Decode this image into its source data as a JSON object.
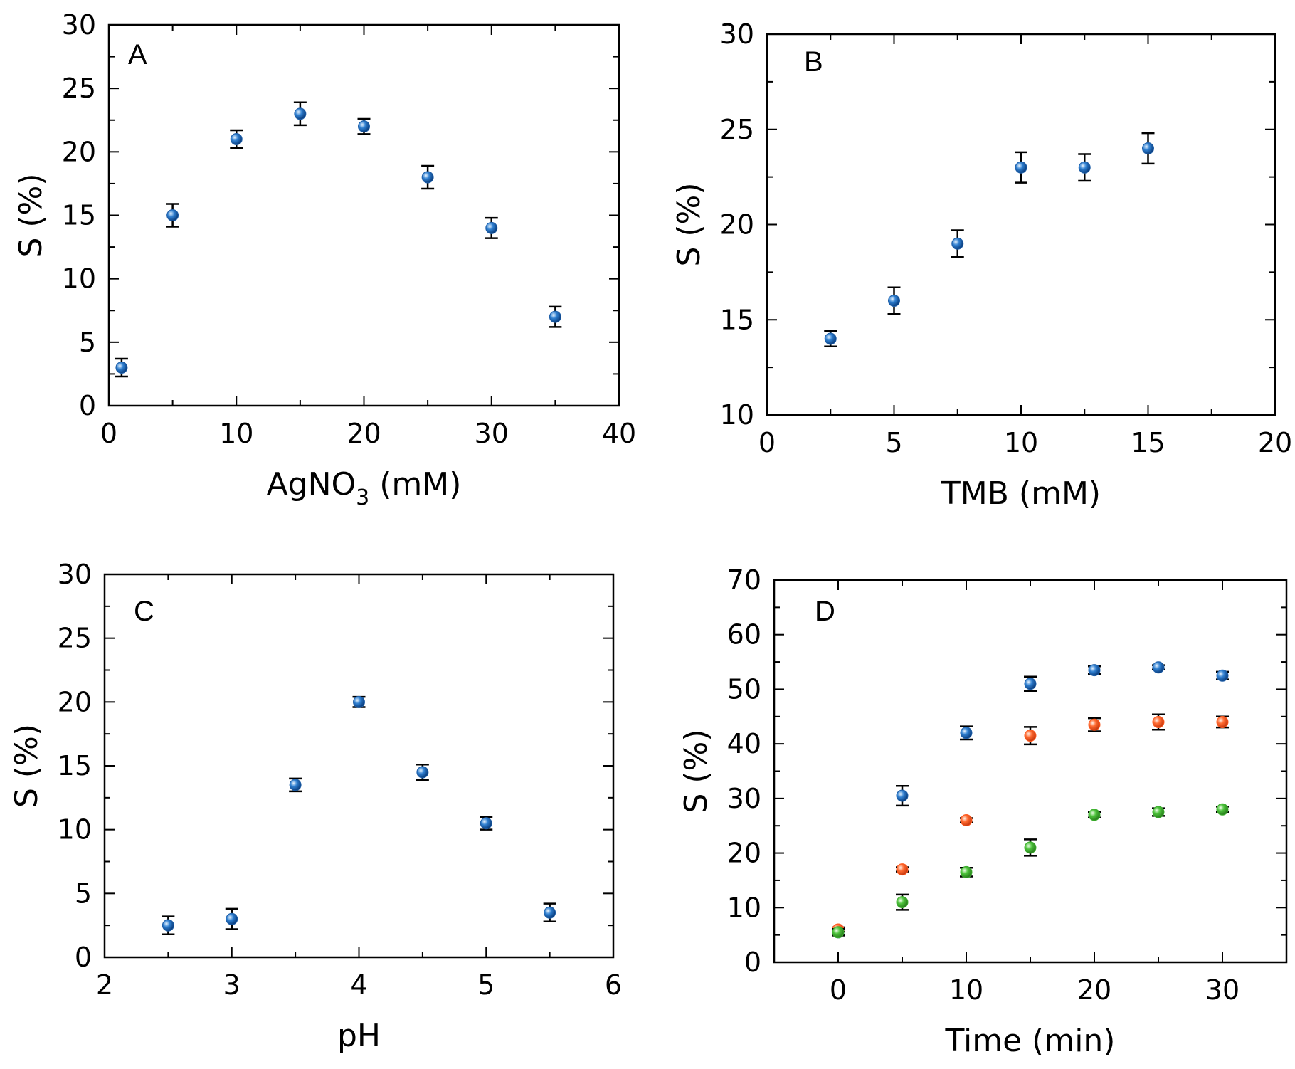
{
  "colors": {
    "panel_label": "#ff0000",
    "axis": "#000000",
    "blue": "#1f5fa8",
    "orange": "#ff5a1f",
    "green": "#3cae2e"
  },
  "chart_data": [
    {
      "type": "scatter",
      "panel_label": "A",
      "xlabel_main": "AgNO",
      "xlabel_sub": "3",
      "xlabel_tail": " (mM)",
      "ylabel": "S (%)",
      "xlim": [
        0,
        40
      ],
      "ylim": [
        0,
        30
      ],
      "xticks": [
        0,
        10,
        20,
        30,
        40
      ],
      "yticks": [
        0,
        5,
        10,
        15,
        20,
        25,
        30
      ],
      "xminor": 5,
      "yminor": 2.5,
      "series": [
        {
          "name": "S",
          "color": "blue",
          "x": [
            1,
            5,
            10,
            15,
            20,
            25,
            30,
            35
          ],
          "y": [
            3,
            15,
            21,
            23,
            22,
            18,
            14,
            7
          ],
          "err": [
            0.7,
            0.9,
            0.7,
            0.9,
            0.6,
            0.9,
            0.8,
            0.8
          ]
        }
      ]
    },
    {
      "type": "scatter",
      "panel_label": "B",
      "xlabel": "TMB (mM)",
      "ylabel": "S (%)",
      "xlim": [
        0,
        20
      ],
      "ylim": [
        10,
        30
      ],
      "xticks": [
        0,
        5,
        10,
        15,
        20
      ],
      "yticks": [
        10,
        15,
        20,
        25,
        30
      ],
      "xminor": 2.5,
      "yminor": 2.5,
      "series": [
        {
          "name": "S",
          "color": "blue",
          "x": [
            2.5,
            5,
            7.5,
            10,
            12.5,
            15
          ],
          "y": [
            14,
            16,
            19,
            23,
            23,
            24
          ],
          "err": [
            0.4,
            0.7,
            0.7,
            0.8,
            0.7,
            0.8
          ]
        }
      ]
    },
    {
      "type": "scatter",
      "panel_label": "C",
      "xlabel": "pH",
      "ylabel": "S (%)",
      "xlim": [
        2,
        6
      ],
      "ylim": [
        0,
        30
      ],
      "xticks": [
        2,
        3,
        4,
        5,
        6
      ],
      "yticks": [
        0,
        5,
        10,
        15,
        20,
        25,
        30
      ],
      "xminor": 0.5,
      "yminor": 2.5,
      "series": [
        {
          "name": "S",
          "color": "blue",
          "x": [
            2.5,
            3,
            3.5,
            4,
            4.5,
            5,
            5.5
          ],
          "y": [
            2.5,
            3,
            13.5,
            20,
            14.5,
            10.5,
            3.5
          ],
          "err": [
            0.7,
            0.8,
            0.5,
            0.4,
            0.6,
            0.5,
            0.7
          ]
        }
      ]
    },
    {
      "type": "scatter",
      "panel_label": "D",
      "xlabel": "Time (min)",
      "ylabel": "S (%)",
      "xlim": [
        -5,
        35
      ],
      "ylim": [
        0,
        70
      ],
      "xticks": [
        0,
        10,
        20,
        30
      ],
      "yticks": [
        0,
        10,
        20,
        30,
        40,
        50,
        60,
        70
      ],
      "xminor": 5,
      "yminor": 5,
      "series": [
        {
          "name": "blue",
          "color": "blue",
          "x": [
            0,
            5,
            10,
            15,
            20,
            25,
            30
          ],
          "y": [
            5.5,
            30.5,
            42,
            51,
            53.5,
            54,
            52.5
          ],
          "err": [
            0.6,
            1.8,
            1.2,
            1.3,
            0.7,
            0.4,
            0.7
          ]
        },
        {
          "name": "orange",
          "color": "orange",
          "x": [
            0,
            5,
            10,
            15,
            20,
            25,
            30
          ],
          "y": [
            6,
            17,
            26,
            41.5,
            43.5,
            44,
            44
          ],
          "err": [
            0.4,
            0.4,
            0.4,
            1.6,
            1.2,
            1.4,
            1.0
          ]
        },
        {
          "name": "green",
          "color": "green",
          "x": [
            0,
            5,
            10,
            15,
            20,
            25,
            30
          ],
          "y": [
            5.5,
            11,
            16.5,
            21,
            27,
            27.5,
            28
          ],
          "err": [
            0.6,
            1.4,
            0.8,
            1.5,
            0.5,
            0.7,
            0.5
          ]
        }
      ]
    }
  ]
}
